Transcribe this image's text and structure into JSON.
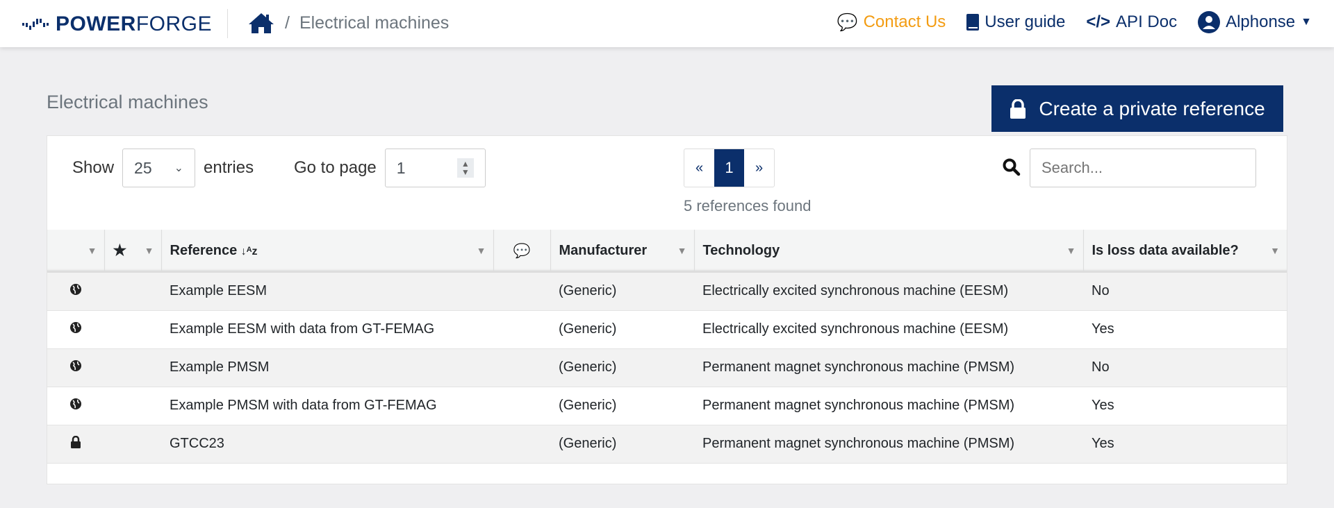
{
  "nav": {
    "brand_bold": "POWER",
    "brand_light": "FORGE",
    "breadcrumb": "Electrical machines",
    "contact": "Contact Us",
    "user_guide": "User guide",
    "api_doc": "API Doc",
    "user": "Alphonse"
  },
  "page": {
    "title": "Electrical machines",
    "create_button": "Create a private reference"
  },
  "controls": {
    "show": "Show",
    "entries_value": "25",
    "entries": "entries",
    "goto": "Go to page",
    "page_value": "1",
    "prev": "«",
    "current_page": "1",
    "next": "»",
    "found": "5 references found",
    "search_placeholder": "Search..."
  },
  "table": {
    "headers": [
      "",
      "",
      "Reference",
      "",
      "Manufacturer",
      "Technology",
      "Is loss data available?"
    ],
    "rows": [
      {
        "icon": "globe",
        "reference": "Example EESM",
        "manufacturer": "(Generic)",
        "technology": "Electrically excited synchronous machine (EESM)",
        "loss": "No"
      },
      {
        "icon": "globe",
        "reference": "Example EESM with data from GT-FEMAG",
        "manufacturer": "(Generic)",
        "technology": "Electrically excited synchronous machine (EESM)",
        "loss": "Yes"
      },
      {
        "icon": "globe",
        "reference": "Example PMSM",
        "manufacturer": "(Generic)",
        "technology": "Permanent magnet synchronous machine (PMSM)",
        "loss": "No"
      },
      {
        "icon": "globe",
        "reference": "Example PMSM with data from GT-FEMAG",
        "manufacturer": "(Generic)",
        "technology": "Permanent magnet synchronous machine (PMSM)",
        "loss": "Yes"
      },
      {
        "icon": "lock",
        "reference": "GTCC23",
        "manufacturer": "(Generic)",
        "technology": "Permanent magnet synchronous machine (PMSM)",
        "loss": "Yes"
      }
    ]
  },
  "colors": {
    "brand": "#0b2f6b",
    "contact": "#f39c12"
  }
}
